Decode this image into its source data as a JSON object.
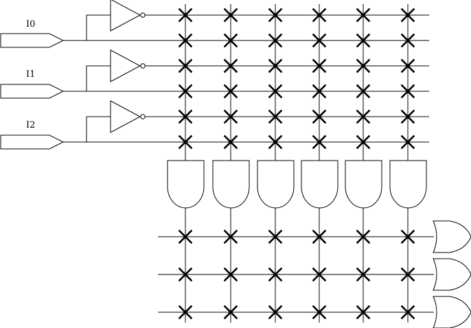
{
  "inputs": [
    {
      "label": "I0"
    },
    {
      "label": "I1"
    },
    {
      "label": "I2"
    }
  ],
  "and_gate_count": 6,
  "or_gate_count": 3,
  "and_plane": {
    "input_line_count": 6,
    "connections": [
      [
        1,
        1,
        1,
        1,
        1,
        1
      ],
      [
        1,
        1,
        1,
        1,
        1,
        1
      ],
      [
        1,
        1,
        1,
        1,
        1,
        1
      ],
      [
        1,
        1,
        1,
        1,
        1,
        1
      ],
      [
        1,
        1,
        1,
        1,
        1,
        1
      ],
      [
        1,
        1,
        1,
        1,
        1,
        1
      ]
    ]
  },
  "or_plane": {
    "connections": [
      [
        1,
        1,
        1,
        1,
        1,
        1
      ],
      [
        1,
        1,
        1,
        1,
        1,
        1
      ],
      [
        1,
        1,
        1,
        1,
        1,
        1
      ]
    ]
  },
  "colors": {
    "stroke": "#000000",
    "background": "#ffffff"
  }
}
